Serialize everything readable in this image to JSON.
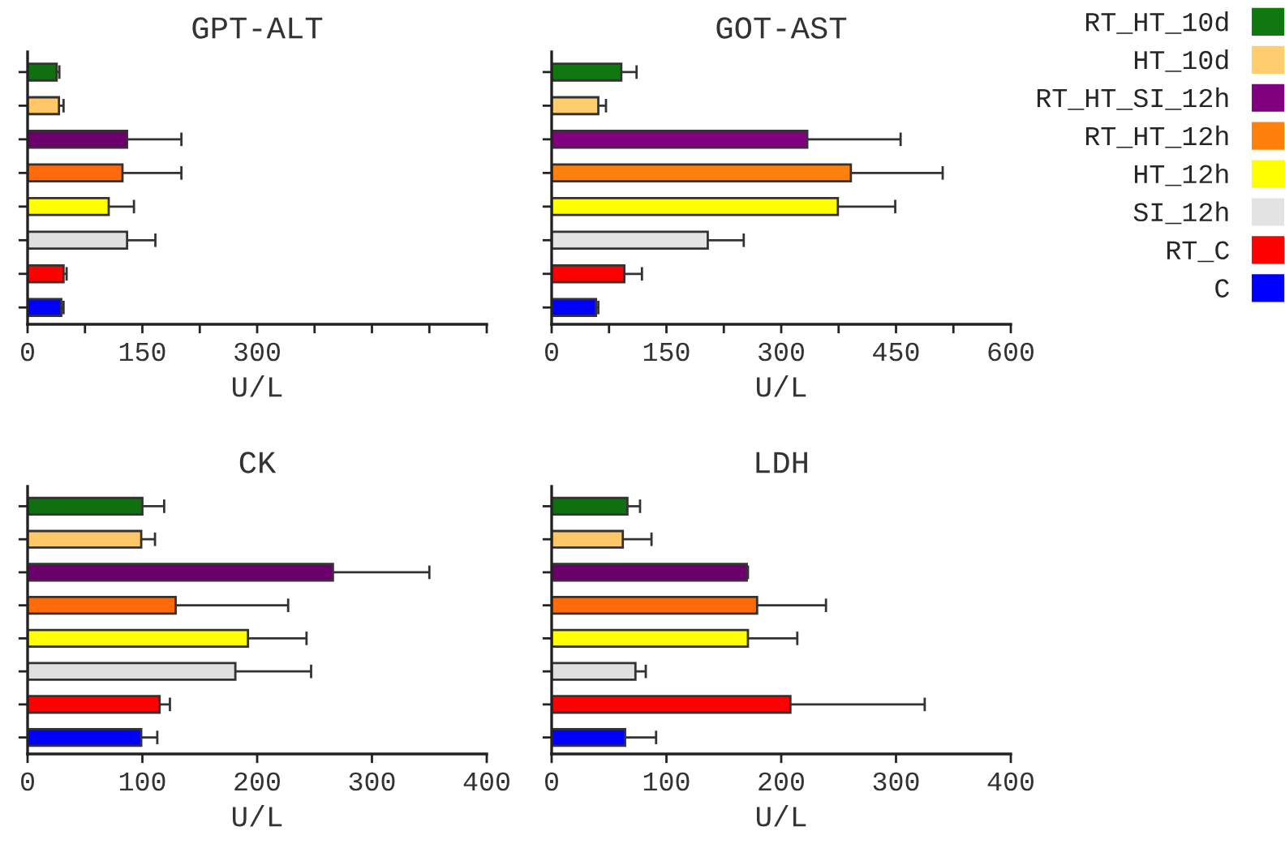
{
  "chart_data": [
    {
      "type": "bar",
      "orientation": "horizontal",
      "title": "GPT-ALT",
      "xlabel": "U/L",
      "categories": [
        null,
        null,
        null,
        null,
        null,
        null,
        null,
        null
      ],
      "xlim": [
        0,
        600
      ],
      "xticks": [
        0,
        {
          "value": 75,
          "label": null
        },
        150,
        {
          "value": 225,
          "label": null
        },
        300,
        {
          "value": 375,
          "label": null
        },
        {
          "value": 450,
          "label": null
        },
        {
          "value": 525,
          "label": null
        },
        {
          "value": 600,
          "label": null
        }
      ],
      "tick_labels": "x",
      "grid": false,
      "legend": false,
      "series": [
        {
          "color": "#0f700f",
          "values": [
            38,
            null,
            null,
            null,
            null,
            null,
            null,
            null
          ],
          "errors": [
            3.5,
            null,
            null,
            null,
            null,
            null,
            null,
            null
          ]
        },
        {
          "color": "#ffc766",
          "values": [
            null,
            41,
            null,
            null,
            null,
            null,
            null,
            null
          ],
          "errors": [
            null,
            6,
            null,
            null,
            null,
            null,
            null,
            null
          ]
        },
        {
          "color": "#6b006b",
          "values": [
            null,
            null,
            130,
            null,
            null,
            null,
            null,
            null
          ],
          "errors": [
            null,
            null,
            71,
            null,
            null,
            null,
            null,
            null
          ]
        },
        {
          "color": "#ff6a0a",
          "values": [
            null,
            null,
            null,
            124,
            null,
            null,
            null,
            null
          ],
          "errors": [
            null,
            null,
            null,
            77,
            null,
            null,
            null,
            null
          ]
        },
        {
          "color": "#ffff00",
          "values": [
            null,
            null,
            null,
            null,
            106,
            null,
            null,
            null
          ],
          "errors": [
            null,
            null,
            null,
            null,
            33,
            null,
            null,
            null
          ]
        },
        {
          "color": "#e0e0e0",
          "values": [
            null,
            null,
            null,
            null,
            null,
            130,
            null,
            null
          ],
          "errors": [
            null,
            null,
            null,
            null,
            null,
            37,
            null,
            null
          ]
        },
        {
          "color": "#ff0000",
          "values": [
            null,
            null,
            null,
            null,
            null,
            null,
            47,
            null
          ],
          "errors": [
            null,
            null,
            null,
            null,
            null,
            null,
            4,
            null
          ]
        },
        {
          "color": "#0000ff",
          "values": [
            null,
            null,
            null,
            null,
            null,
            null,
            null,
            44
          ],
          "errors": [
            null,
            null,
            null,
            null,
            null,
            null,
            null,
            3
          ]
        }
      ]
    },
    {
      "type": "bar",
      "orientation": "horizontal",
      "title": "GOT-AST",
      "xlabel": "U/L",
      "categories": [
        null,
        null,
        null,
        null,
        null,
        null,
        null,
        null
      ],
      "xlim": [
        0,
        600
      ],
      "xticks": [
        0,
        {
          "value": 75,
          "label": null
        },
        150,
        {
          "value": 225,
          "label": null
        },
        300,
        {
          "value": 375,
          "label": null
        },
        450,
        {
          "value": 525,
          "label": null
        },
        600
      ],
      "tick_labels": "x",
      "grid": false,
      "legend": "right",
      "series": [
        {
          "name": "RT_HT_10d",
          "color": "#0f780f",
          "values": [
            91,
            null,
            null,
            null,
            null,
            null,
            null,
            null
          ],
          "errors": [
            20,
            null,
            null,
            null,
            null,
            null,
            null,
            null
          ]
        },
        {
          "name": "HT_10d",
          "color": "#ffcc6e",
          "values": [
            null,
            61,
            null,
            null,
            null,
            null,
            null,
            null
          ],
          "errors": [
            null,
            10,
            null,
            null,
            null,
            null,
            null,
            null
          ]
        },
        {
          "name": "RT_HT_SI_12h",
          "color": "#800080",
          "values": [
            null,
            null,
            334,
            null,
            null,
            null,
            null,
            null
          ],
          "errors": [
            null,
            null,
            122,
            null,
            null,
            null,
            null,
            null
          ]
        },
        {
          "name": "RT_HT_12h",
          "color": "#ff800a",
          "values": [
            null,
            null,
            null,
            391,
            null,
            null,
            null,
            null
          ],
          "errors": [
            null,
            null,
            null,
            120,
            null,
            null,
            null,
            null
          ]
        },
        {
          "name": "HT_12h",
          "color": "#ffff00",
          "values": [
            null,
            null,
            null,
            null,
            374,
            null,
            null,
            null
          ],
          "errors": [
            null,
            null,
            null,
            null,
            75,
            null,
            null,
            null
          ]
        },
        {
          "name": "SI_12h",
          "color": "#e3e3e3",
          "values": [
            null,
            null,
            null,
            null,
            null,
            204,
            null,
            null
          ],
          "errors": [
            null,
            null,
            null,
            null,
            null,
            47,
            null,
            null
          ]
        },
        {
          "name": "RT_C",
          "color": "#ff0000",
          "values": [
            null,
            null,
            null,
            null,
            null,
            null,
            95,
            null
          ],
          "errors": [
            null,
            null,
            null,
            null,
            null,
            null,
            23,
            null
          ]
        },
        {
          "name": "C",
          "color": "#0000ff",
          "values": [
            null,
            null,
            null,
            null,
            null,
            null,
            null,
            58
          ],
          "errors": [
            null,
            null,
            null,
            null,
            null,
            null,
            null,
            3
          ]
        }
      ]
    },
    {
      "type": "bar",
      "orientation": "horizontal",
      "title": "CK",
      "xlabel": "U/L",
      "categories": [
        null,
        null,
        null,
        null,
        null,
        null,
        null,
        null
      ],
      "xlim": [
        0,
        400
      ],
      "xticks": [
        0,
        100,
        200,
        300,
        400
      ],
      "tick_labels": "x",
      "grid": false,
      "legend": false,
      "series": [
        {
          "color": "#0f700f",
          "values": [
            100,
            null,
            null,
            null,
            null,
            null,
            null,
            null
          ],
          "errors": [
            19,
            null,
            null,
            null,
            null,
            null,
            null,
            null
          ]
        },
        {
          "color": "#ffc766",
          "values": [
            null,
            99,
            null,
            null,
            null,
            null,
            null,
            null
          ],
          "errors": [
            null,
            12,
            null,
            null,
            null,
            null,
            null,
            null
          ]
        },
        {
          "color": "#6b006b",
          "values": [
            null,
            null,
            266,
            null,
            null,
            null,
            null,
            null
          ],
          "errors": [
            null,
            null,
            84,
            null,
            null,
            null,
            null,
            null
          ]
        },
        {
          "color": "#ff6a0a",
          "values": [
            null,
            null,
            null,
            129,
            null,
            null,
            null,
            null
          ],
          "errors": [
            null,
            null,
            null,
            98,
            null,
            null,
            null,
            null
          ]
        },
        {
          "color": "#ffff00",
          "values": [
            null,
            null,
            null,
            null,
            192,
            null,
            null,
            null
          ],
          "errors": [
            null,
            null,
            null,
            null,
            51,
            null,
            null,
            null
          ]
        },
        {
          "color": "#e0e0e0",
          "values": [
            null,
            null,
            null,
            null,
            null,
            181,
            null,
            null
          ],
          "errors": [
            null,
            null,
            null,
            null,
            null,
            66,
            null,
            null
          ]
        },
        {
          "color": "#ff0000",
          "values": [
            null,
            null,
            null,
            null,
            null,
            null,
            115,
            null
          ],
          "errors": [
            null,
            null,
            null,
            null,
            null,
            null,
            9,
            null
          ]
        },
        {
          "color": "#0000ff",
          "values": [
            null,
            null,
            null,
            null,
            null,
            null,
            null,
            99
          ],
          "errors": [
            null,
            null,
            null,
            null,
            null,
            null,
            null,
            14
          ]
        }
      ]
    },
    {
      "type": "bar",
      "orientation": "horizontal",
      "title": "LDH",
      "xlabel": "U/L",
      "categories": [
        null,
        null,
        null,
        null,
        null,
        null,
        null,
        null
      ],
      "xlim": [
        0,
        400
      ],
      "xticks": [
        0,
        100,
        200,
        300,
        400
      ],
      "tick_labels": "x",
      "grid": false,
      "legend": false,
      "series": [
        {
          "color": "#0f700f",
          "values": [
            66,
            null,
            null,
            null,
            null,
            null,
            null,
            null
          ],
          "errors": [
            11,
            null,
            null,
            null,
            null,
            null,
            null,
            null
          ]
        },
        {
          "color": "#ffc766",
          "values": [
            null,
            62,
            null,
            null,
            null,
            null,
            null,
            null
          ],
          "errors": [
            null,
            25,
            null,
            null,
            null,
            null,
            null,
            null
          ]
        },
        {
          "color": "#6b006b",
          "values": [
            null,
            null,
            170,
            null,
            null,
            null,
            null,
            null
          ],
          "errors": [
            null,
            null,
            1,
            null,
            null,
            null,
            null,
            null
          ]
        },
        {
          "color": "#ff6a0a",
          "values": [
            null,
            null,
            null,
            179,
            null,
            null,
            null,
            null
          ],
          "errors": [
            null,
            null,
            null,
            60,
            null,
            null,
            null,
            null
          ]
        },
        {
          "color": "#ffff00",
          "values": [
            null,
            null,
            null,
            null,
            171,
            null,
            null,
            null
          ],
          "errors": [
            null,
            null,
            null,
            null,
            43,
            null,
            null,
            null
          ]
        },
        {
          "color": "#e0e0e0",
          "values": [
            null,
            null,
            null,
            null,
            null,
            73,
            null,
            null
          ],
          "errors": [
            null,
            null,
            null,
            null,
            null,
            9,
            null,
            null
          ]
        },
        {
          "color": "#ff0000",
          "values": [
            null,
            null,
            null,
            null,
            null,
            null,
            208,
            null
          ],
          "errors": [
            null,
            null,
            null,
            null,
            null,
            null,
            117,
            null
          ]
        },
        {
          "color": "#0000ff",
          "values": [
            null,
            null,
            null,
            null,
            null,
            null,
            null,
            64
          ],
          "errors": [
            null,
            null,
            null,
            null,
            null,
            null,
            null,
            27
          ]
        }
      ]
    }
  ]
}
